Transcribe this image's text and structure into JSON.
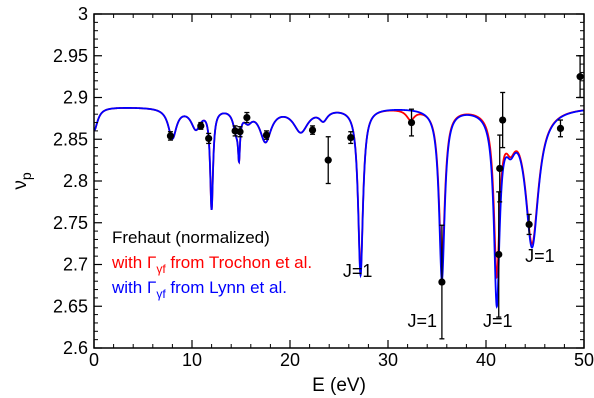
{
  "chart_data": {
    "type": "line",
    "xlabel": "E (eV)",
    "ylabel": "ν",
    "ylabel_subscript": "p",
    "xlim": [
      0,
      50
    ],
    "ylim": [
      2.6,
      3.0
    ],
    "x_ticks": [
      "0",
      "10",
      "20",
      "30",
      "40",
      "50"
    ],
    "y_ticks": [
      "2.6",
      "2.65",
      "2.7",
      "2.75",
      "2.8",
      "2.85",
      "2.9",
      "2.95",
      "3"
    ],
    "x_tick_values": [
      0,
      10,
      20,
      30,
      40,
      50
    ],
    "y_tick_values": [
      2.6,
      2.65,
      2.7,
      2.75,
      2.8,
      2.85,
      2.9,
      2.95,
      3.0
    ],
    "grid": false,
    "legend_placement": "lower-left",
    "series": [
      {
        "name": "Frehaut (normalized)",
        "kind": "scatter-errorbar",
        "color": "#000000",
        "points": [
          {
            "x": 7.8,
            "y": 2.854,
            "err": 0.005
          },
          {
            "x": 10.9,
            "y": 2.866,
            "err": 0.004
          },
          {
            "x": 11.7,
            "y": 2.851,
            "err": 0.006
          },
          {
            "x": 14.4,
            "y": 2.86,
            "err": 0.006
          },
          {
            "x": 14.9,
            "y": 2.859,
            "err": 0.006
          },
          {
            "x": 15.6,
            "y": 2.876,
            "err": 0.006
          },
          {
            "x": 17.6,
            "y": 2.855,
            "err": 0.005
          },
          {
            "x": 22.3,
            "y": 2.861,
            "err": 0.005
          },
          {
            "x": 23.9,
            "y": 2.825,
            "err": 0.028
          },
          {
            "x": 26.2,
            "y": 2.852,
            "err": 0.007
          },
          {
            "x": 32.4,
            "y": 2.87,
            "err": 0.016
          },
          {
            "x": 35.5,
            "y": 2.679,
            "err": 0.068
          },
          {
            "x": 41.3,
            "y": 2.712,
            "err": 0.075
          },
          {
            "x": 41.4,
            "y": 2.815,
            "err": 0.04
          },
          {
            "x": 41.7,
            "y": 2.873,
            "err": 0.033
          },
          {
            "x": 44.4,
            "y": 2.748,
            "err": 0.012
          },
          {
            "x": 47.6,
            "y": 2.863,
            "err": 0.01
          },
          {
            "x": 49.6,
            "y": 2.925,
            "err": 0.025
          }
        ]
      },
      {
        "name": "with Γγf from Trochon et al.",
        "kind": "line",
        "color": "#ff0000",
        "baseline": 2.889,
        "resonances": [
          {
            "x0": 0.0,
            "depth": 0.028,
            "width": 0.45
          },
          {
            "x0": 8.0,
            "depth": 0.036,
            "width": 0.5
          },
          {
            "x0": 10.4,
            "depth": 0.024,
            "width": 0.6
          },
          {
            "x0": 12.0,
            "depth": 0.118,
            "width": 0.18
          },
          {
            "x0": 14.5,
            "depth": 0.024,
            "width": 0.35
          },
          {
            "x0": 14.8,
            "depth": 0.045,
            "width": 0.12
          },
          {
            "x0": 15.7,
            "depth": 0.012,
            "width": 0.5
          },
          {
            "x0": 17.5,
            "depth": 0.039,
            "width": 0.7
          },
          {
            "x0": 21.1,
            "depth": 0.028,
            "width": 0.9
          },
          {
            "x0": 23.4,
            "depth": 0.012,
            "width": 0.5
          },
          {
            "x0": 27.2,
            "depth": 0.196,
            "width": 0.3
          },
          {
            "x0": 32.3,
            "depth": 0.012,
            "width": 0.5
          },
          {
            "x0": 35.5,
            "depth": 0.19,
            "width": 0.35
          },
          {
            "x0": 41.1,
            "depth": 0.191,
            "width": 0.35
          },
          {
            "x0": 42.5,
            "depth": 0.03,
            "width": 0.6
          },
          {
            "x0": 44.7,
            "depth": 0.16,
            "width": 0.8
          }
        ]
      },
      {
        "name": "with Γγf from Lynn et al.",
        "kind": "line",
        "color": "#0000ff",
        "baseline": 2.889,
        "resonances": [
          {
            "x0": 0.0,
            "depth": 0.028,
            "width": 0.45
          },
          {
            "x0": 8.0,
            "depth": 0.036,
            "width": 0.5
          },
          {
            "x0": 10.4,
            "depth": 0.024,
            "width": 0.6
          },
          {
            "x0": 12.0,
            "depth": 0.118,
            "width": 0.18
          },
          {
            "x0": 14.5,
            "depth": 0.024,
            "width": 0.35
          },
          {
            "x0": 14.8,
            "depth": 0.045,
            "width": 0.12
          },
          {
            "x0": 15.7,
            "depth": 0.012,
            "width": 0.5
          },
          {
            "x0": 17.5,
            "depth": 0.039,
            "width": 0.7
          },
          {
            "x0": 21.1,
            "depth": 0.028,
            "width": 0.9
          },
          {
            "x0": 23.4,
            "depth": 0.012,
            "width": 0.5
          },
          {
            "x0": 27.2,
            "depth": 0.2,
            "width": 0.3
          },
          {
            "x0": 35.5,
            "depth": 0.205,
            "width": 0.35
          },
          {
            "x0": 41.1,
            "depth": 0.226,
            "width": 0.35
          },
          {
            "x0": 42.5,
            "depth": 0.03,
            "width": 0.6
          },
          {
            "x0": 44.7,
            "depth": 0.164,
            "width": 0.8
          }
        ]
      }
    ],
    "legend": [
      {
        "text": "Frehaut (normalized)",
        "color": "#000000"
      },
      {
        "pre": "with ",
        "sym": "Γ",
        "sub": "γf",
        "post": " from Trochon et al.",
        "color": "#ff0000"
      },
      {
        "pre": "with ",
        "sym": "Γ",
        "sub": "γf",
        "post": " from Lynn et al.",
        "color": "#0000ff"
      }
    ],
    "annotations": [
      {
        "text": "J=1",
        "x": 26.9,
        "y": 2.685
      },
      {
        "text": "J=1",
        "x": 33.5,
        "y": 2.625
      },
      {
        "text": "J=1",
        "x": 41.2,
        "y": 2.625
      },
      {
        "text": "J=1",
        "x": 45.5,
        "y": 2.703
      }
    ]
  }
}
